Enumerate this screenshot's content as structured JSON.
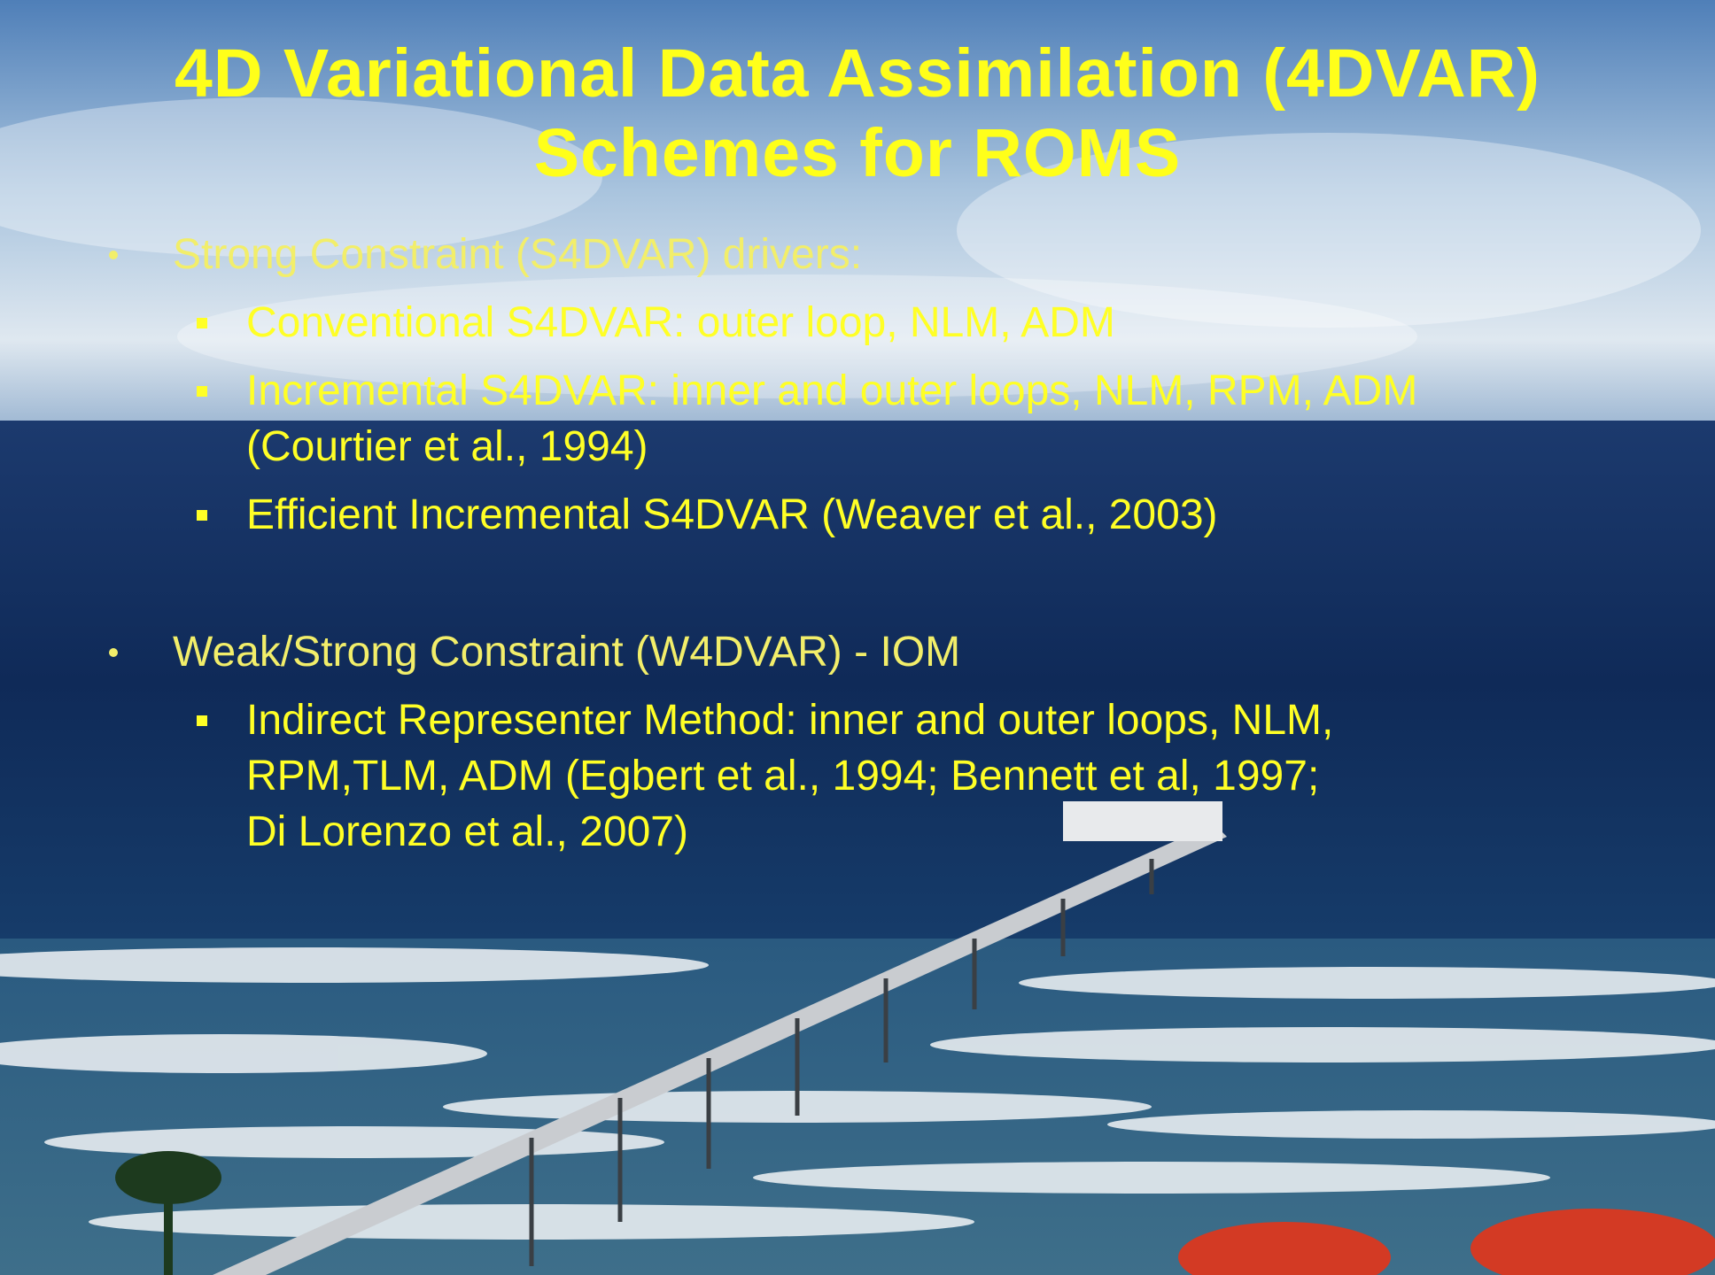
{
  "title": {
    "lines": [
      "4D Variational Data Assimilation (4DVAR)",
      "Schemes for ROMS"
    ]
  },
  "bullets": [
    {
      "text": "Strong Constraint (S4DVAR) drivers:",
      "items": [
        {
          "lines": [
            "Conventional S4DVAR: outer loop, NLM, ADM"
          ]
        },
        {
          "lines": [
            "Incremental S4DVAR: inner and outer loops, NLM, RPM, ADM",
            "(Courtier et al., 1994)"
          ]
        },
        {
          "lines": [
            "Efficient Incremental S4DVAR (Weaver et al., 2003)"
          ]
        }
      ]
    },
    {
      "text": "Weak/Strong Constraint (W4DVAR) - IOM",
      "items": [
        {
          "lines": [
            "Indirect Representer Method: inner and outer loops, NLM,",
            "RPM,TLM, ADM (Egbert et al., 1994; Bennett et al, 1997;",
            "Di Lorenzo et al., 2007)"
          ]
        }
      ]
    }
  ]
}
